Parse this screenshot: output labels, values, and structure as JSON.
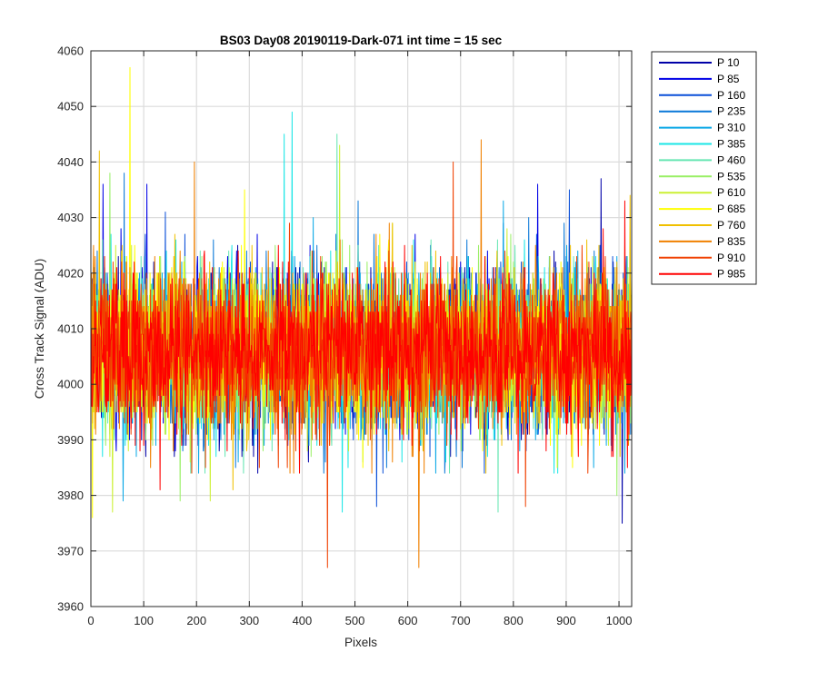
{
  "chart_data": {
    "type": "line",
    "title": "BS03 Day08 20190119-Dark-071 int time = 15 sec",
    "xlabel": "Pixels",
    "ylabel": "Cross Track Signal (ADU)",
    "xlim": [
      0,
      1024
    ],
    "ylim": [
      3960,
      4060
    ],
    "x_ticks": [
      0,
      100,
      200,
      300,
      400,
      500,
      600,
      700,
      800,
      900,
      1000
    ],
    "y_ticks": [
      3960,
      3970,
      3980,
      3990,
      4000,
      4010,
      4020,
      4030,
      4040,
      4050,
      4060
    ],
    "grid": true,
    "legend_position": "outside-top-right",
    "n_points_per_series": 1024,
    "noise_model": {
      "mean_adu": 4006,
      "std_adu": 7
    },
    "series": [
      {
        "name": "P 10",
        "color": "#0000a8",
        "notable_points": [
          [
            680,
            3987
          ],
          [
            1005,
            3975
          ],
          [
            965,
            4037
          ]
        ]
      },
      {
        "name": "P 85",
        "color": "#0000e6",
        "notable_points": [
          [
            22,
            4036
          ],
          [
            105,
            4036
          ],
          [
            845,
            4036
          ]
        ]
      },
      {
        "name": "P 160",
        "color": "#0a4fd8",
        "notable_points": [
          [
            140,
            4031
          ],
          [
            540,
            3978
          ],
          [
            905,
            4035
          ]
        ]
      },
      {
        "name": "P 235",
        "color": "#0a78d8",
        "notable_points": [
          [
            62,
            4038
          ],
          [
            505,
            4033
          ],
          [
            828,
            4030
          ]
        ]
      },
      {
        "name": "P 310",
        "color": "#0aa8e6",
        "notable_points": [
          [
            60,
            3979
          ],
          [
            420,
            4030
          ],
          [
            780,
            4033
          ]
        ]
      },
      {
        "name": "P 385",
        "color": "#19e6e6",
        "notable_points": [
          [
            380,
            4049
          ],
          [
            365,
            4045
          ],
          [
            475,
            3977
          ]
        ]
      },
      {
        "name": "P 460",
        "color": "#66e6b2",
        "notable_points": [
          [
            465,
            4045
          ],
          [
            770,
            3977
          ]
        ]
      },
      {
        "name": "P 535",
        "color": "#99f066",
        "notable_points": [
          [
            35,
            4038
          ],
          [
            995,
            3980
          ],
          [
            168,
            3979
          ]
        ]
      },
      {
        "name": "P 610",
        "color": "#ccf033",
        "notable_points": [
          [
            470,
            4043
          ],
          [
            225,
            3979
          ],
          [
            40,
            3977
          ]
        ]
      },
      {
        "name": "P 685",
        "color": "#ffff00",
        "notable_points": [
          [
            73,
            4057
          ],
          [
            2,
            3976
          ],
          [
            290,
            4035
          ]
        ]
      },
      {
        "name": "P 760",
        "color": "#f0c000",
        "notable_points": [
          [
            15,
            4042
          ],
          [
            1020,
            4034
          ],
          [
            268,
            3981
          ]
        ]
      },
      {
        "name": "P 835",
        "color": "#f08000",
        "notable_points": [
          [
            620,
            3967
          ],
          [
            738,
            4044
          ],
          [
            195,
            4040
          ]
        ]
      },
      {
        "name": "P 910",
        "color": "#f04000",
        "notable_points": [
          [
            447,
            3967
          ],
          [
            685,
            4040
          ],
          [
            822,
            3978
          ]
        ]
      },
      {
        "name": "P 985",
        "color": "#ff0000",
        "notable_points": [
          [
            1010,
            4033
          ],
          [
            130,
            3981
          ]
        ]
      }
    ]
  }
}
